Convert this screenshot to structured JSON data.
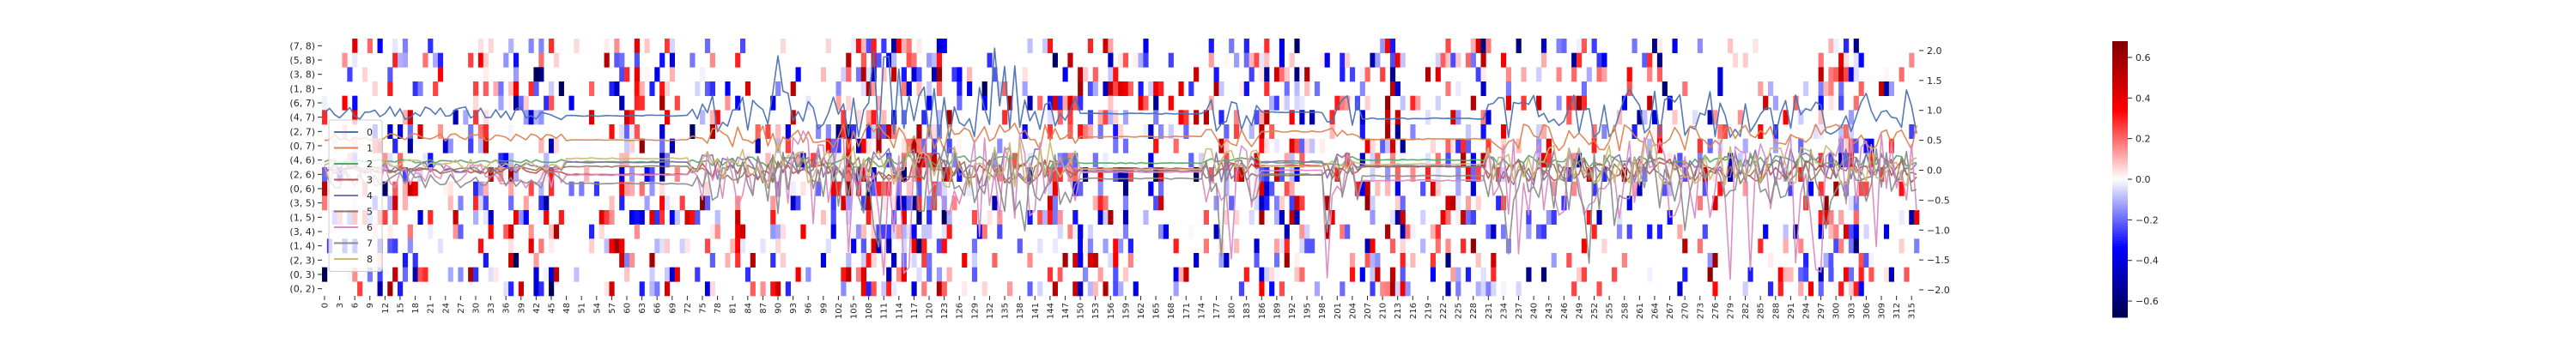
{
  "chart_data": {
    "type": "heatmap",
    "title": "",
    "y_categories": [
      "(7, 8)",
      "(5, 8)",
      "(3, 8)",
      "(1, 8)",
      "(6, 7)",
      "(4, 7)",
      "(2, 7)",
      "(0, 7)",
      "(4, 6)",
      "(2, 6)",
      "(0, 6)",
      "(3, 5)",
      "(1, 5)",
      "(3, 4)",
      "(1, 4)",
      "(2, 3)",
      "(0, 3)",
      "(0, 2)"
    ],
    "x_categories": [
      "0",
      "3",
      "6",
      "9",
      "12",
      "15",
      "18",
      "21",
      "24",
      "27",
      "30",
      "33",
      "36",
      "39",
      "42",
      "45",
      "48",
      "51",
      "54",
      "57",
      "60",
      "63",
      "66",
      "69",
      "72",
      "75",
      "78",
      "81",
      "84",
      "87",
      "90",
      "93",
      "96",
      "99",
      "102",
      "105",
      "108",
      "111",
      "114",
      "117",
      "120",
      "123",
      "126",
      "129",
      "132",
      "135",
      "138",
      "141",
      "144",
      "147",
      "150",
      "153",
      "156",
      "159",
      "162",
      "165",
      "168",
      "171",
      "174",
      "177",
      "180",
      "183",
      "186",
      "189",
      "192",
      "195",
      "198",
      "201",
      "204",
      "207",
      "210",
      "213",
      "216",
      "219",
      "222",
      "225",
      "228",
      "231",
      "234",
      "237",
      "240",
      "243",
      "246",
      "249",
      "252",
      "255",
      "258",
      "261",
      "264",
      "267",
      "270",
      "273",
      "276",
      "279",
      "282",
      "285",
      "288",
      "291",
      "294",
      "297",
      "300",
      "303",
      "306",
      "309",
      "312",
      "315"
    ],
    "n_columns": 317,
    "colorbar": {
      "ticks": [
        "0.6",
        "0.4",
        "0.2",
        "0.0",
        "−0.2",
        "−0.4",
        "−0.6"
      ],
      "range": [
        -0.68,
        0.68
      ],
      "colormap": "seismic"
    },
    "right_axis": {
      "ticks": [
        "2.0",
        "1.5",
        "1.0",
        "0.5",
        "0.0",
        "−0.5",
        "−1.0",
        "−1.5",
        "−2.0"
      ],
      "range": [
        -2.1,
        2.2
      ]
    },
    "legend": {
      "entries": [
        "0",
        "1",
        "2",
        "3",
        "4",
        "5",
        "6",
        "7",
        "8"
      ],
      "colors": [
        "#4c72b0",
        "#dd8452",
        "#55a868",
        "#c44e52",
        "#8172b3",
        "#937860",
        "#da8bc3",
        "#8c8c8c",
        "#ccb974"
      ],
      "position": "left"
    },
    "series_levels": [
      0.95,
      0.55,
      0.15,
      0.0,
      0.05,
      0.0,
      -0.1,
      -0.15,
      0.1
    ],
    "series_amplitude": [
      0.45,
      0.25,
      0.12,
      0.22,
      0.35,
      0.25,
      0.8,
      0.6,
      0.4
    ],
    "flat_segments": [
      [
        48,
        72
      ],
      [
        150,
        174
      ],
      [
        186,
        198
      ],
      [
        206,
        230
      ]
    ]
  }
}
